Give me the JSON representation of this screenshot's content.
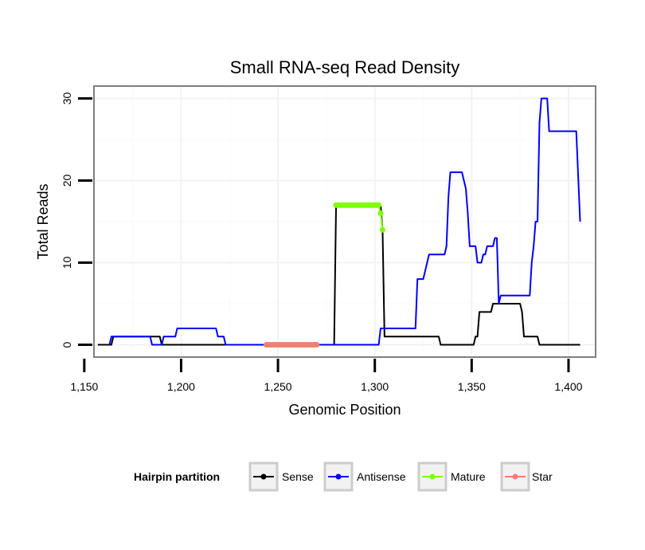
{
  "chart_data": {
    "type": "line",
    "title": "Small RNA-seq Read Density",
    "xlabel": "Genomic Position",
    "ylabel": "Total Reads",
    "xlim": [
      1155,
      1414
    ],
    "ylim": [
      -1.5,
      31.5
    ],
    "x_ticks": [
      1150,
      1200,
      1250,
      1300,
      1350,
      1400
    ],
    "x_tick_labels": [
      "1,150",
      "1,200",
      "1,250",
      "1,300",
      "1,350",
      "1,400"
    ],
    "y_ticks": [
      0,
      10,
      20,
      30
    ],
    "y_tick_labels": [
      "0",
      "10",
      "20",
      "30"
    ],
    "legend": {
      "title": "Hairpin partition",
      "placement": "bottom",
      "entries": [
        {
          "label": "Sense",
          "color": "#000000"
        },
        {
          "label": "Antisense",
          "color": "#0000ff"
        },
        {
          "label": "Mature",
          "color": "#7fff00"
        },
        {
          "label": "Star",
          "color": "#f08070"
        }
      ]
    },
    "series": [
      {
        "name": "Sense",
        "color": "#000000",
        "points": [
          [
            1157,
            0
          ],
          [
            1164,
            0
          ],
          [
            1165,
            1
          ],
          [
            1189,
            1
          ],
          [
            1190,
            0
          ],
          [
            1279,
            0
          ],
          [
            1280,
            17
          ],
          [
            1303,
            17
          ],
          [
            1304,
            14
          ],
          [
            1305,
            1
          ],
          [
            1333,
            1
          ],
          [
            1334,
            0
          ],
          [
            1351,
            0
          ],
          [
            1352,
            1
          ],
          [
            1353,
            1
          ],
          [
            1354,
            4
          ],
          [
            1360,
            4
          ],
          [
            1361,
            5
          ],
          [
            1375,
            5
          ],
          [
            1376,
            4
          ],
          [
            1377,
            1
          ],
          [
            1384,
            1
          ],
          [
            1385,
            0
          ],
          [
            1406,
            0
          ]
        ]
      },
      {
        "name": "Antisense",
        "color": "#0000ff",
        "points": [
          [
            1163,
            0
          ],
          [
            1164,
            1
          ],
          [
            1184,
            1
          ],
          [
            1185,
            0
          ],
          [
            1190,
            0
          ],
          [
            1191,
            1
          ],
          [
            1197,
            1
          ],
          [
            1198,
            2
          ],
          [
            1218,
            2
          ],
          [
            1219,
            1
          ],
          [
            1222,
            1
          ],
          [
            1223,
            0
          ],
          [
            1280,
            0
          ],
          [
            1302,
            0
          ],
          [
            1303,
            2
          ],
          [
            1321,
            2
          ],
          [
            1322,
            8
          ],
          [
            1325,
            8
          ],
          [
            1326,
            9
          ],
          [
            1327,
            10
          ],
          [
            1328,
            11
          ],
          [
            1336,
            11
          ],
          [
            1337,
            12
          ],
          [
            1338,
            18
          ],
          [
            1339,
            21
          ],
          [
            1345,
            21
          ],
          [
            1346,
            20
          ],
          [
            1347,
            19
          ],
          [
            1348,
            16
          ],
          [
            1349,
            12
          ],
          [
            1352,
            12
          ],
          [
            1353,
            10
          ],
          [
            1355,
            10
          ],
          [
            1356,
            11
          ],
          [
            1357,
            11
          ],
          [
            1358,
            12
          ],
          [
            1361,
            12
          ],
          [
            1362,
            13
          ],
          [
            1363,
            13
          ],
          [
            1364,
            5
          ],
          [
            1365,
            6
          ],
          [
            1380,
            6
          ],
          [
            1381,
            10
          ],
          [
            1382,
            12
          ],
          [
            1383,
            15
          ],
          [
            1384,
            15
          ],
          [
            1385,
            27
          ],
          [
            1386,
            30
          ],
          [
            1389,
            30
          ],
          [
            1390,
            26
          ],
          [
            1404,
            26
          ],
          [
            1406,
            15
          ]
        ]
      },
      {
        "name": "Mature",
        "color": "#7fff00",
        "points": [
          [
            1280,
            17
          ],
          [
            1281,
            17
          ],
          [
            1282,
            17
          ],
          [
            1283,
            17
          ],
          [
            1284,
            17
          ],
          [
            1285,
            17
          ],
          [
            1286,
            17
          ],
          [
            1287,
            17
          ],
          [
            1288,
            17
          ],
          [
            1289,
            17
          ],
          [
            1290,
            17
          ],
          [
            1291,
            17
          ],
          [
            1292,
            17
          ],
          [
            1293,
            17
          ],
          [
            1294,
            17
          ],
          [
            1295,
            17
          ],
          [
            1296,
            17
          ],
          [
            1297,
            17
          ],
          [
            1298,
            17
          ],
          [
            1299,
            17
          ],
          [
            1300,
            17
          ],
          [
            1301,
            17
          ],
          [
            1302,
            17
          ],
          [
            1303,
            16
          ],
          [
            1304,
            14
          ]
        ]
      },
      {
        "name": "Star",
        "color": "#f08070",
        "points": [
          [
            1244,
            0
          ],
          [
            1245,
            0
          ],
          [
            1246,
            0
          ],
          [
            1247,
            0
          ],
          [
            1248,
            0
          ],
          [
            1249,
            0
          ],
          [
            1250,
            0
          ],
          [
            1251,
            0
          ],
          [
            1252,
            0
          ],
          [
            1253,
            0
          ],
          [
            1254,
            0
          ],
          [
            1255,
            0
          ],
          [
            1256,
            0
          ],
          [
            1257,
            0
          ],
          [
            1258,
            0
          ],
          [
            1259,
            0
          ],
          [
            1260,
            0
          ],
          [
            1261,
            0
          ],
          [
            1262,
            0
          ],
          [
            1263,
            0
          ],
          [
            1264,
            0
          ],
          [
            1265,
            0
          ],
          [
            1266,
            0
          ],
          [
            1267,
            0
          ],
          [
            1268,
            0
          ],
          [
            1269,
            0
          ],
          [
            1270,
            0
          ]
        ]
      }
    ]
  }
}
